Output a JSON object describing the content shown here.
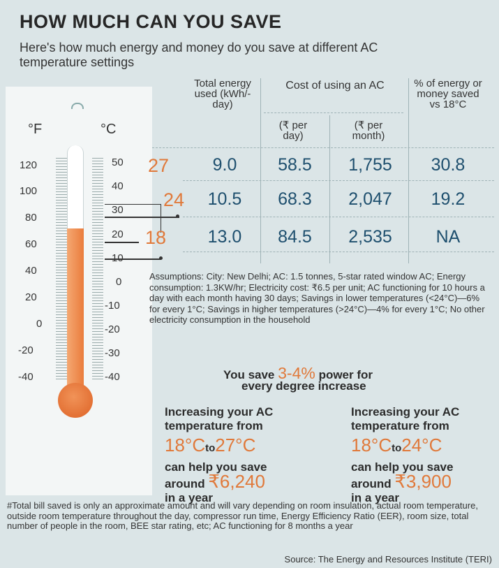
{
  "header": {
    "title": "HOW MUCH CAN YOU SAVE",
    "subtitle": "Here's how much energy and money do you save at different AC temperature settings"
  },
  "thermometer": {
    "unit_f": "°F",
    "unit_c": "°C",
    "f_labels": [
      "120",
      "100",
      "80",
      "60",
      "40",
      "20",
      "0",
      "-20",
      "-40"
    ],
    "c_labels": [
      "50",
      "40",
      "30",
      "20",
      "10",
      "0",
      "-10",
      "-20",
      "-30",
      "-40"
    ],
    "mercury_level_f": 70
  },
  "table": {
    "columns": {
      "energy": "Total energy used (kWh/-day)",
      "cost_group": "Cost of using an AC",
      "cost_day": "(₹ per day)",
      "cost_month": "(₹ per month)",
      "saved": "% of energy or money saved vs 18°C"
    },
    "rows": [
      {
        "temp": "27",
        "energy": "9.0",
        "cost_day": "58.5",
        "cost_month": "1,755",
        "saved": "30.8"
      },
      {
        "temp": "24",
        "energy": "10.5",
        "cost_day": "68.3",
        "cost_month": "2,047",
        "saved": "19.2"
      },
      {
        "temp": "18",
        "energy": "13.0",
        "cost_day": "84.5",
        "cost_month": "2,535",
        "saved": "NA"
      }
    ]
  },
  "assumptions": "Assumptions: City: New Delhi; AC: 1.5 tonnes, 5-star rated window AC; Energy consumption: 1.3KW/hr; Electricity cost: ₹6.5 per unit; AC functioning for 10 hours a day with each month having 30 days; Savings in lower temperatures (<24°C)—6% for every 1°C; Savings in higher temperatures (>24°C)—4% for every 1°C; No other electricity consumption in the household",
  "save_message": {
    "prefix": "You save",
    "value": "3-4%",
    "suffix": "power for",
    "line2": "every degree increase"
  },
  "savings": [
    {
      "intro": "Increasing your AC temperature from",
      "from": "18°C",
      "to_word": "to",
      "to": "27°C",
      "line": "can help you save",
      "around": "around",
      "amount": "₹6,240",
      "period": "in a year"
    },
    {
      "intro": "Increasing your AC temperature from",
      "from": "18°C",
      "to_word": "to",
      "to": "24°C",
      "line": "can help you save",
      "around": "around",
      "amount": "₹3,900",
      "period": "in a year"
    }
  ],
  "footnote": "#Total bill saved is only an approximate amount and will vary depending on room insulation, actual room temperature, outside room temperature throughout the day, compressor run time, Energy Efficiency Ratio (EER), room size, total number of people in the room, BEE star rating, etc; AC functioning for 8 months a year",
  "source": "Source: The Energy and Resources Institute (TERI)",
  "colors": {
    "accent": "#e0793a",
    "value": "#1e4f6e",
    "background": "#dbe5e7"
  }
}
